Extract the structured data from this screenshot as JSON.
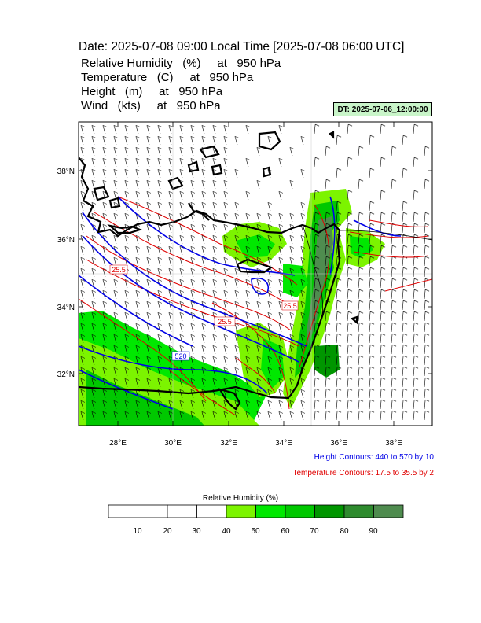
{
  "header": {
    "title": "Date: 2025-07-08  09:00 Local Time [2025-07-08  06:00 UTC]",
    "lines": [
      "Relative Humidity   (%)     at   950 hPa",
      "Temperature   (C)     at   950 hPa",
      "Height   (m)     at   950 hPa",
      "Wind   (kts)     at   950 hPa"
    ]
  },
  "init_time": "DT: 2025-07-06_12:00:00",
  "map": {
    "lat_labels": [
      "38°N",
      "36°N",
      "34°N",
      "32°N"
    ],
    "lon_labels": [
      "28°E",
      "30°E",
      "32°E",
      "34°E",
      "36°E",
      "38°E"
    ],
    "temperature_labels": [
      "25.5",
      "25.5",
      "25.5"
    ],
    "height_labels": [
      "520"
    ]
  },
  "legend": {
    "height_contours": "Height Contours: 440 to 570 by 10",
    "temperature_contours": "Temperature Contours: 17.5 to 35.5 by 2",
    "height_color": "#0000ff",
    "temperature_color": "#ff0000"
  },
  "colorbar": {
    "title": "Relative Humidity  (%)",
    "labels": [
      "10",
      "20",
      "30",
      "40",
      "50",
      "60",
      "70",
      "80",
      "90"
    ],
    "colors": [
      "#ffffff",
      "#ffffff",
      "#ffffff",
      "#ffffff",
      "#7cf400",
      "#00e800",
      "#00c800",
      "#009600",
      "#2e8b2e",
      "#4f8c4f"
    ]
  }
}
